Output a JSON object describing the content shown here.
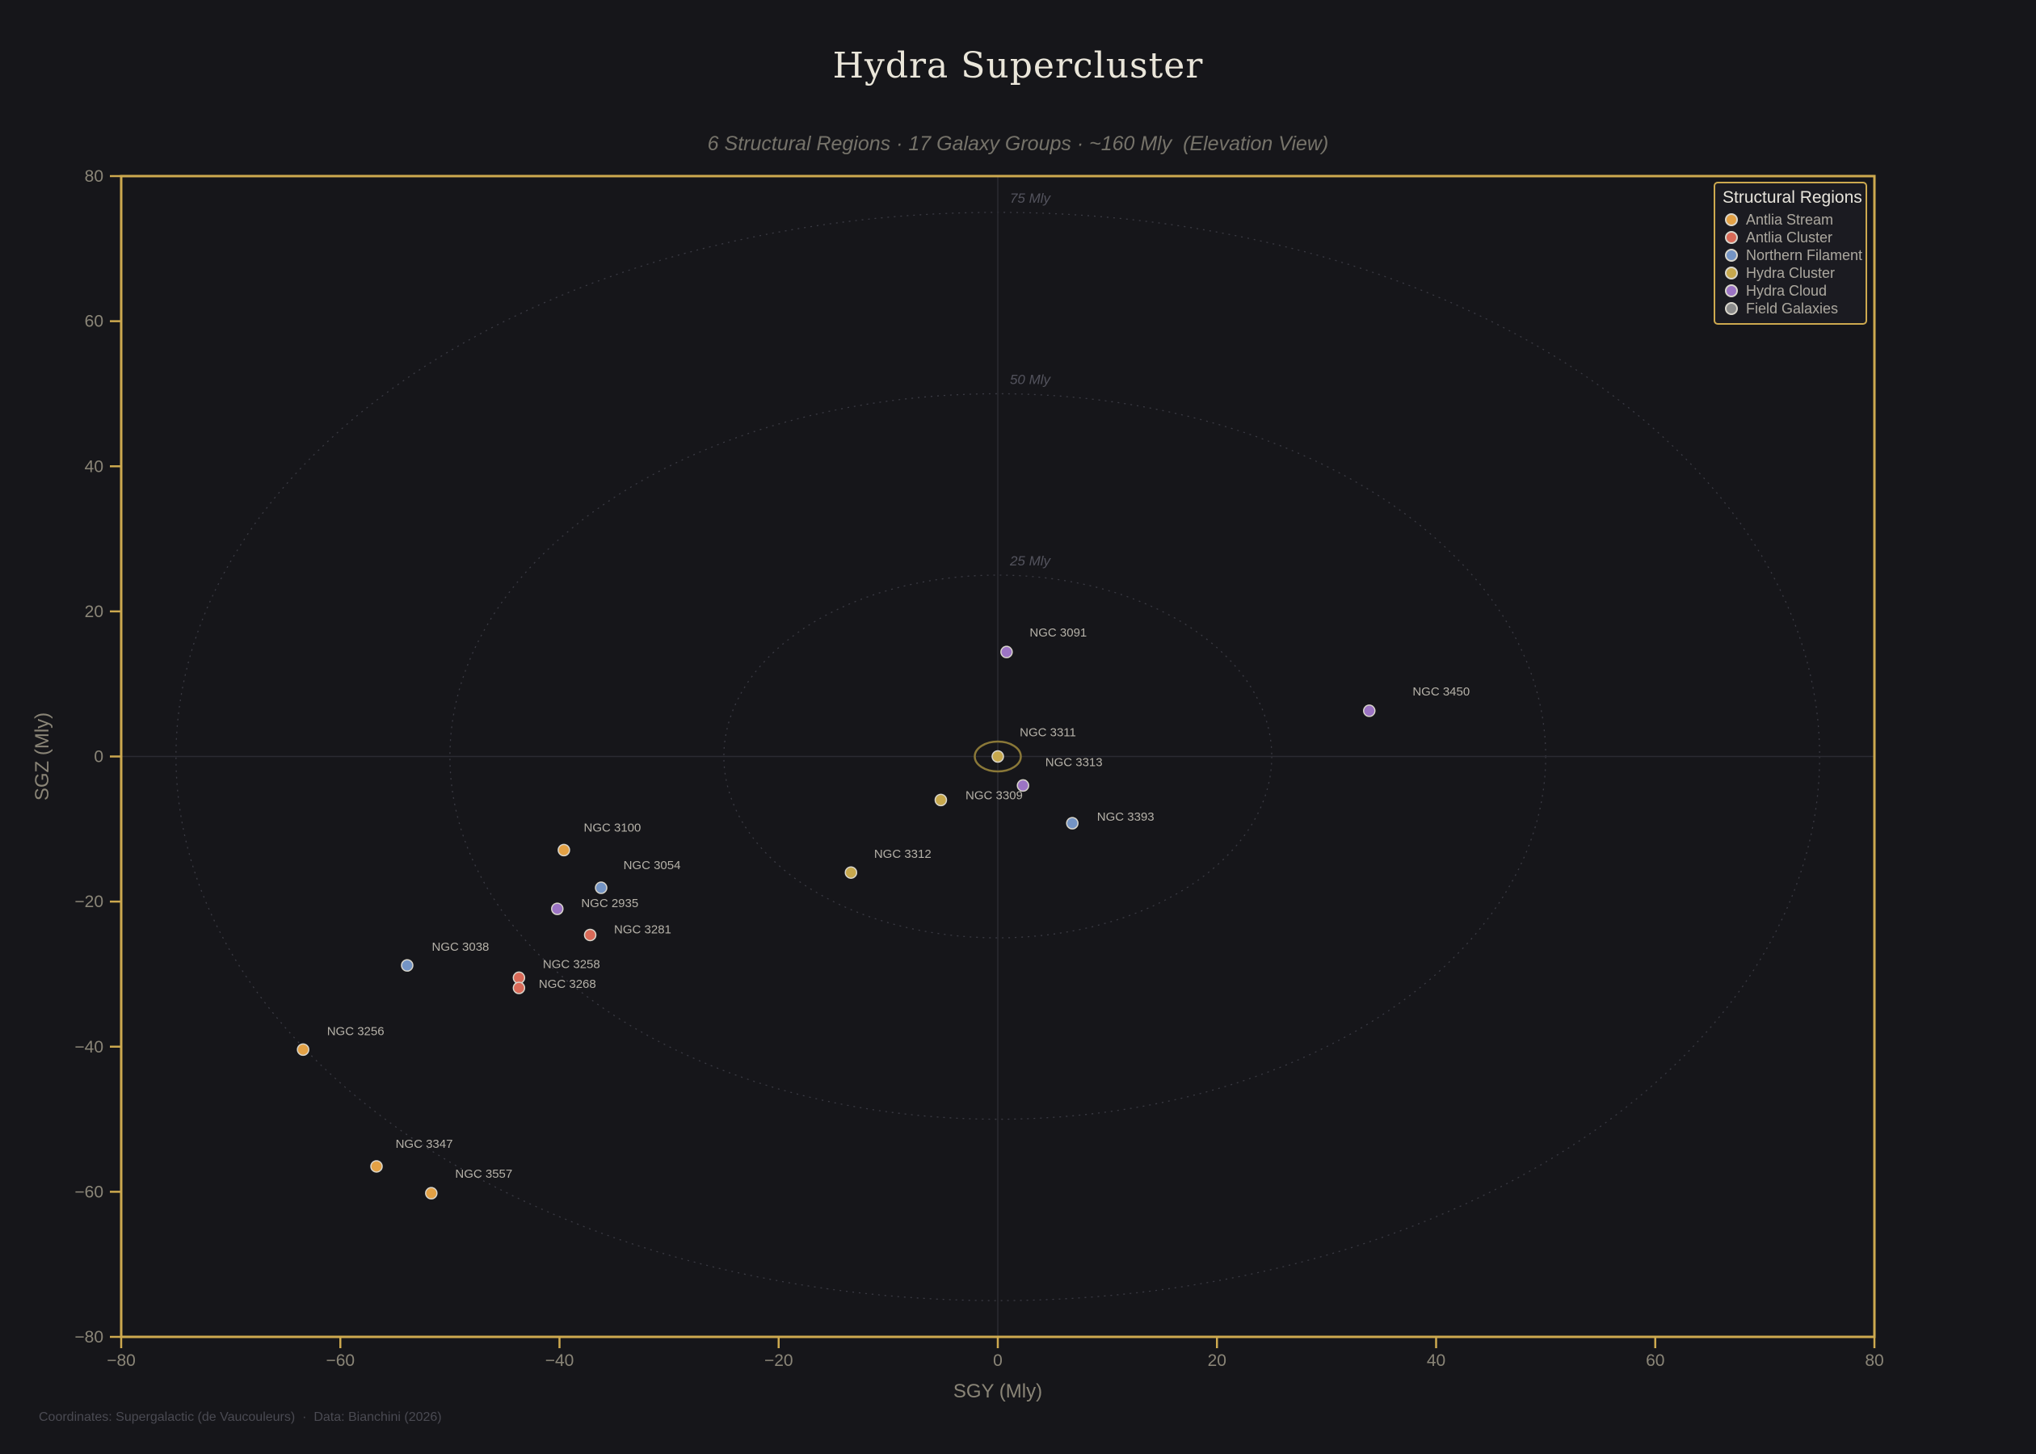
{
  "colors": {
    "background": "#16161A",
    "plot_border": "#CDA94F",
    "tick_mark": "#CDA94F",
    "tick_label": "#8A8577",
    "axis_label": "#8A8577",
    "title": "#EAE6DA",
    "subtitle": "#76736A",
    "point_label": "#B5B1A8",
    "ring_line": "#3B3B44",
    "ring_label": "#53535D",
    "origin_line": "#2B2B32",
    "marker_edge": "#D9D6CC",
    "legend_bg": "#1B1B21",
    "legend_border": "#CDA94F",
    "legend_title": "#E8E5DC",
    "legend_text": "#ACA89F",
    "footer": "#4A4A52",
    "highlight_ring": "#8A7838"
  },
  "header": {
    "title": "Hydra Supercluster",
    "subtitle": "6 Structural Regions · 17 Galaxy Groups · ~160 Mly  (Elevation View)"
  },
  "footer": {
    "text": "Coordinates: Supergalactic (de Vaucouleurs)  ·  Data: Bianchini (2026)"
  },
  "chart_data": {
    "type": "scatter",
    "title": "Hydra Supercluster",
    "subtitle": "6 Structural Regions · 17 Galaxy Groups · ~160 Mly  (Elevation View)",
    "xlabel": "SGY (Mly)",
    "ylabel": "SGZ (Mly)",
    "xlim": [
      -80,
      80
    ],
    "ylim": [
      -80,
      80
    ],
    "xticks": [
      -80,
      -60,
      -40,
      -20,
      0,
      20,
      40,
      60,
      80
    ],
    "yticks": [
      -80,
      -60,
      -40,
      -20,
      0,
      20,
      40,
      60,
      80
    ],
    "xtick_labels": [
      "−80",
      "−60",
      "−40",
      "−20",
      "0",
      "20",
      "40",
      "60",
      "80"
    ],
    "ytick_labels": [
      "−80",
      "−60",
      "−40",
      "−20",
      "0",
      "20",
      "40",
      "60",
      "80"
    ],
    "grid": "origin-crosshair-only",
    "distance_rings": [
      {
        "radius_mly": 25,
        "label": "25 Mly"
      },
      {
        "radius_mly": 50,
        "label": "50 Mly"
      },
      {
        "radius_mly": 75,
        "label": "75 Mly"
      }
    ],
    "legend": {
      "title": "Structural Regions",
      "position": "upper right"
    },
    "highlight": {
      "galaxy": "NGC 3311"
    },
    "series": [
      {
        "name": "Antlia Stream",
        "color": "#E3A145",
        "points": [
          {
            "name": "NGC 3100",
            "x": -39.6,
            "y": -12.9,
            "label_offset": [
              60,
              -28
            ]
          },
          {
            "name": "NGC 3256",
            "x": -63.4,
            "y": -40.4,
            "label_offset": [
              65,
              -23
            ]
          },
          {
            "name": "NGC 3347",
            "x": -56.7,
            "y": -56.5,
            "label_offset": [
              59,
              -28
            ]
          },
          {
            "name": "NGC 3557",
            "x": -51.7,
            "y": -60.2,
            "label_offset": [
              65,
              -24
            ]
          }
        ]
      },
      {
        "name": "Antlia Cluster",
        "color": "#D96A58",
        "points": [
          {
            "name": "NGC 3281",
            "x": -37.2,
            "y": -24.6,
            "label_offset": [
              65,
              -7
            ]
          },
          {
            "name": "NGC 3258",
            "x": -43.7,
            "y": -30.5,
            "label_offset": [
              65,
              -17
            ]
          },
          {
            "name": "NGC 3268",
            "x": -43.7,
            "y": -31.9,
            "label_offset": [
              60,
              -5
            ]
          }
        ]
      },
      {
        "name": "Northern Filament",
        "color": "#7494C4",
        "points": [
          {
            "name": "NGC 3054",
            "x": -36.2,
            "y": -18.1,
            "label_offset": [
              63,
              -28
            ]
          },
          {
            "name": "NGC 3038",
            "x": -53.9,
            "y": -28.8,
            "label_offset": [
              66,
              -23
            ]
          },
          {
            "name": "NGC 3393",
            "x": 6.8,
            "y": -9.2,
            "label_offset": [
              66,
              -8
            ]
          }
        ]
      },
      {
        "name": "Hydra Cluster",
        "color": "#C7A84D",
        "points": [
          {
            "name": "NGC 3311",
            "x": 0.0,
            "y": 0.0,
            "label_offset": [
              62,
              -30
            ]
          },
          {
            "name": "NGC 3309",
            "x": -5.2,
            "y": -6.0,
            "label_offset": [
              66,
              -6
            ]
          },
          {
            "name": "NGC 3312",
            "x": -13.4,
            "y": -16.0,
            "label_offset": [
              64,
              -23
            ]
          }
        ]
      },
      {
        "name": "Hydra Cloud",
        "color": "#9C74C4",
        "points": [
          {
            "name": "NGC 3091",
            "x": 0.8,
            "y": 14.4,
            "label_offset": [
              64,
              -24
            ]
          },
          {
            "name": "NGC 3313",
            "x": 2.3,
            "y": -4.0,
            "label_offset": [
              63,
              -29
            ]
          },
          {
            "name": "NGC 2935",
            "x": -40.2,
            "y": -21.0,
            "label_offset": [
              65,
              -7
            ]
          },
          {
            "name": "NGC 3450",
            "x": 33.9,
            "y": 6.3,
            "label_offset": [
              89,
              -24
            ]
          }
        ]
      },
      {
        "name": "Field Galaxies",
        "color": "#8C8C8C",
        "points": []
      }
    ]
  }
}
